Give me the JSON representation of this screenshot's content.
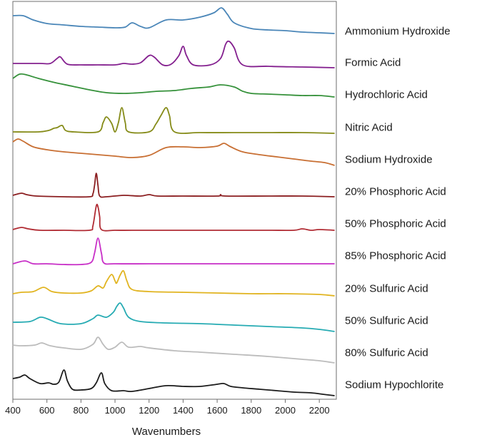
{
  "chart_data": {
    "type": "line",
    "title": "",
    "xlabel": "Wavenumbers",
    "ylabel": "",
    "xlim": [
      400,
      2300
    ],
    "xticks": [
      400,
      600,
      800,
      1000,
      1200,
      1400,
      1600,
      1800,
      2000,
      2200
    ],
    "xtick_labels": [
      "400",
      "600",
      "800",
      "1000",
      "1200",
      "1400",
      "1600",
      "1800",
      "2000",
      "2200"
    ],
    "y_units": "stacked offset (arbitrary)",
    "series": [
      {
        "name": "Ammonium Hydroxide",
        "color": "#4a86b8",
        "points": [
          [
            400,
            20
          ],
          [
            460,
            20
          ],
          [
            520,
            26
          ],
          [
            600,
            31
          ],
          [
            700,
            33
          ],
          [
            800,
            35
          ],
          [
            900,
            36
          ],
          [
            1000,
            37
          ],
          [
            1060,
            36
          ],
          [
            1100,
            30
          ],
          [
            1150,
            35
          ],
          [
            1200,
            37
          ],
          [
            1300,
            26
          ],
          [
            1400,
            26
          ],
          [
            1500,
            22
          ],
          [
            1580,
            16
          ],
          [
            1625,
            9
          ],
          [
            1660,
            18
          ],
          [
            1700,
            30
          ],
          [
            1800,
            38
          ],
          [
            1900,
            40
          ],
          [
            2000,
            41
          ],
          [
            2100,
            43
          ],
          [
            2200,
            44
          ],
          [
            2290,
            45
          ]
        ]
      },
      {
        "name": "Formic Acid",
        "color": "#84208f",
        "points": [
          [
            400,
            87
          ],
          [
            560,
            87
          ],
          [
            620,
            87
          ],
          [
            660,
            80
          ],
          [
            680,
            78
          ],
          [
            720,
            88
          ],
          [
            800,
            89
          ],
          [
            900,
            89
          ],
          [
            1000,
            89
          ],
          [
            1050,
            87
          ],
          [
            1100,
            88
          ],
          [
            1150,
            86
          ],
          [
            1200,
            76
          ],
          [
            1230,
            78
          ],
          [
            1280,
            89
          ],
          [
            1330,
            88
          ],
          [
            1375,
            76
          ],
          [
            1400,
            63
          ],
          [
            1420,
            76
          ],
          [
            1460,
            89
          ],
          [
            1560,
            89
          ],
          [
            1620,
            80
          ],
          [
            1650,
            60
          ],
          [
            1670,
            56
          ],
          [
            1700,
            65
          ],
          [
            1750,
            89
          ],
          [
            1900,
            91
          ],
          [
            2100,
            92
          ],
          [
            2290,
            93
          ]
        ]
      },
      {
        "name": "Hydrochloric Acid",
        "color": "#35913a",
        "points": [
          [
            400,
            108
          ],
          [
            440,
            102
          ],
          [
            480,
            103
          ],
          [
            550,
            108
          ],
          [
            650,
            114
          ],
          [
            750,
            119
          ],
          [
            850,
            124
          ],
          [
            950,
            128
          ],
          [
            1050,
            129
          ],
          [
            1150,
            128
          ],
          [
            1250,
            126
          ],
          [
            1350,
            125
          ],
          [
            1450,
            122
          ],
          [
            1550,
            120
          ],
          [
            1620,
            117
          ],
          [
            1700,
            120
          ],
          [
            1750,
            126
          ],
          [
            1800,
            129
          ],
          [
            1900,
            130
          ],
          [
            2000,
            131
          ],
          [
            2100,
            132
          ],
          [
            2200,
            132
          ],
          [
            2290,
            134
          ]
        ]
      },
      {
        "name": "Nitric Acid",
        "color": "#858b18",
        "points": [
          [
            400,
            183
          ],
          [
            550,
            183
          ],
          [
            610,
            181
          ],
          [
            640,
            178
          ],
          [
            660,
            177
          ],
          [
            690,
            174
          ],
          [
            710,
            181
          ],
          [
            760,
            183
          ],
          [
            900,
            183
          ],
          [
            930,
            170
          ],
          [
            950,
            162
          ],
          [
            980,
            171
          ],
          [
            1000,
            183
          ],
          [
            1020,
            170
          ],
          [
            1040,
            149
          ],
          [
            1060,
            170
          ],
          [
            1080,
            183
          ],
          [
            1200,
            183
          ],
          [
            1240,
            172
          ],
          [
            1270,
            160
          ],
          [
            1300,
            149
          ],
          [
            1320,
            160
          ],
          [
            1350,
            183
          ],
          [
            1500,
            184
          ],
          [
            1700,
            184
          ],
          [
            1900,
            184
          ],
          [
            2100,
            184
          ],
          [
            2290,
            185
          ]
        ]
      },
      {
        "name": "Sodium Hydroxide",
        "color": "#c86f33",
        "points": [
          [
            400,
            197
          ],
          [
            430,
            193
          ],
          [
            460,
            196
          ],
          [
            520,
            204
          ],
          [
            600,
            208
          ],
          [
            700,
            211
          ],
          [
            800,
            213
          ],
          [
            900,
            215
          ],
          [
            1000,
            217
          ],
          [
            1100,
            219
          ],
          [
            1200,
            216
          ],
          [
            1300,
            205
          ],
          [
            1400,
            204
          ],
          [
            1500,
            205
          ],
          [
            1600,
            203
          ],
          [
            1640,
            199
          ],
          [
            1680,
            204
          ],
          [
            1750,
            211
          ],
          [
            1850,
            215
          ],
          [
            1950,
            218
          ],
          [
            2050,
            221
          ],
          [
            2150,
            224
          ],
          [
            2230,
            226
          ],
          [
            2290,
            230
          ]
        ]
      },
      {
        "name": "20% Phosphoric Acid",
        "color": "#8b1e20",
        "points": [
          [
            400,
            272
          ],
          [
            450,
            269
          ],
          [
            480,
            271
          ],
          [
            540,
            273
          ],
          [
            700,
            274
          ],
          [
            850,
            274
          ],
          [
            870,
            270
          ],
          [
            880,
            258
          ],
          [
            890,
            241
          ],
          [
            900,
            258
          ],
          [
            910,
            273
          ],
          [
            950,
            274
          ],
          [
            1050,
            272
          ],
          [
            1150,
            273
          ],
          [
            1200,
            271
          ],
          [
            1250,
            273
          ],
          [
            1400,
            273
          ],
          [
            1600,
            273
          ],
          [
            1620,
            271
          ],
          [
            1650,
            273
          ],
          [
            1900,
            273
          ],
          [
            2100,
            273
          ],
          [
            2290,
            274
          ]
        ]
      },
      {
        "name": "50% Phosphoric Acid",
        "color": "#b12c34",
        "points": [
          [
            400,
            320
          ],
          [
            450,
            317
          ],
          [
            490,
            319
          ],
          [
            560,
            321
          ],
          [
            700,
            321
          ],
          [
            850,
            321
          ],
          [
            870,
            315
          ],
          [
            890,
            287
          ],
          [
            900,
            288
          ],
          [
            910,
            302
          ],
          [
            920,
            320
          ],
          [
            1000,
            321
          ],
          [
            1100,
            321
          ],
          [
            1300,
            321
          ],
          [
            1500,
            321
          ],
          [
            1700,
            321
          ],
          [
            1900,
            321
          ],
          [
            2050,
            321
          ],
          [
            2100,
            319
          ],
          [
            2150,
            321
          ],
          [
            2200,
            320
          ],
          [
            2290,
            321
          ]
        ]
      },
      {
        "name": "85% Phosphoric Acid",
        "color": "#c82fc7",
        "points": [
          [
            400,
            368
          ],
          [
            470,
            364
          ],
          [
            520,
            368
          ],
          [
            600,
            368
          ],
          [
            700,
            369
          ],
          [
            800,
            369
          ],
          [
            860,
            366
          ],
          [
            880,
            353
          ],
          [
            900,
            332
          ],
          [
            920,
            353
          ],
          [
            935,
            367
          ],
          [
            1000,
            368
          ],
          [
            1200,
            368
          ],
          [
            1400,
            368
          ],
          [
            1600,
            368
          ],
          [
            1800,
            368
          ],
          [
            2000,
            368
          ],
          [
            2200,
            368
          ],
          [
            2290,
            368
          ]
        ]
      },
      {
        "name": "20% Sulfuric Acid",
        "color": "#e1b420",
        "points": [
          [
            400,
            410
          ],
          [
            450,
            408
          ],
          [
            520,
            407
          ],
          [
            580,
            401
          ],
          [
            630,
            407
          ],
          [
            700,
            409
          ],
          [
            800,
            409
          ],
          [
            860,
            406
          ],
          [
            900,
            399
          ],
          [
            930,
            402
          ],
          [
            950,
            393
          ],
          [
            980,
            383
          ],
          [
            1000,
            392
          ],
          [
            1010,
            395
          ],
          [
            1030,
            384
          ],
          [
            1050,
            378
          ],
          [
            1070,
            392
          ],
          [
            1100,
            404
          ],
          [
            1200,
            407
          ],
          [
            1400,
            408
          ],
          [
            1600,
            409
          ],
          [
            1800,
            410
          ],
          [
            2000,
            410
          ],
          [
            2200,
            411
          ],
          [
            2290,
            413
          ]
        ]
      },
      {
        "name": "50% Sulfuric Acid",
        "color": "#26abb3",
        "points": [
          [
            400,
            450
          ],
          [
            500,
            449
          ],
          [
            560,
            443
          ],
          [
            600,
            445
          ],
          [
            680,
            452
          ],
          [
            800,
            452
          ],
          [
            870,
            445
          ],
          [
            900,
            440
          ],
          [
            950,
            443
          ],
          [
            990,
            436
          ],
          [
            1010,
            428
          ],
          [
            1030,
            423
          ],
          [
            1050,
            430
          ],
          [
            1080,
            443
          ],
          [
            1150,
            449
          ],
          [
            1300,
            451
          ],
          [
            1500,
            452
          ],
          [
            1700,
            454
          ],
          [
            1900,
            456
          ],
          [
            2100,
            458
          ],
          [
            2200,
            460
          ],
          [
            2290,
            463
          ]
        ]
      },
      {
        "name": "80% Sulfuric Acid",
        "color": "#bcbcbc",
        "points": [
          [
            400,
            482
          ],
          [
            450,
            483
          ],
          [
            530,
            482
          ],
          [
            570,
            479
          ],
          [
            620,
            483
          ],
          [
            700,
            486
          ],
          [
            800,
            488
          ],
          [
            870,
            481
          ],
          [
            900,
            471
          ],
          [
            930,
            481
          ],
          [
            960,
            488
          ],
          [
            1000,
            485
          ],
          [
            1040,
            478
          ],
          [
            1080,
            485
          ],
          [
            1150,
            484
          ],
          [
            1200,
            486
          ],
          [
            1350,
            490
          ],
          [
            1500,
            492
          ],
          [
            1700,
            495
          ],
          [
            1900,
            498
          ],
          [
            2100,
            502
          ],
          [
            2200,
            504
          ],
          [
            2290,
            507
          ]
        ]
      },
      {
        "name": "Sodium Hypochlorite",
        "color": "#1c1c1c",
        "points": [
          [
            400,
            529
          ],
          [
            440,
            527
          ],
          [
            470,
            524
          ],
          [
            500,
            529
          ],
          [
            560,
            536
          ],
          [
            610,
            535
          ],
          [
            640,
            537
          ],
          [
            670,
            534
          ],
          [
            700,
            517
          ],
          [
            720,
            532
          ],
          [
            750,
            544
          ],
          [
            800,
            545
          ],
          [
            860,
            543
          ],
          [
            890,
            535
          ],
          [
            920,
            521
          ],
          [
            940,
            536
          ],
          [
            980,
            546
          ],
          [
            1050,
            546
          ],
          [
            1100,
            547
          ],
          [
            1200,
            543
          ],
          [
            1300,
            539
          ],
          [
            1400,
            540
          ],
          [
            1500,
            540
          ],
          [
            1600,
            537
          ],
          [
            1640,
            536
          ],
          [
            1680,
            540
          ],
          [
            1750,
            542
          ],
          [
            1850,
            544
          ],
          [
            1950,
            546
          ],
          [
            2050,
            548
          ],
          [
            2150,
            549
          ],
          [
            2220,
            551
          ],
          [
            2290,
            553
          ]
        ]
      }
    ]
  }
}
